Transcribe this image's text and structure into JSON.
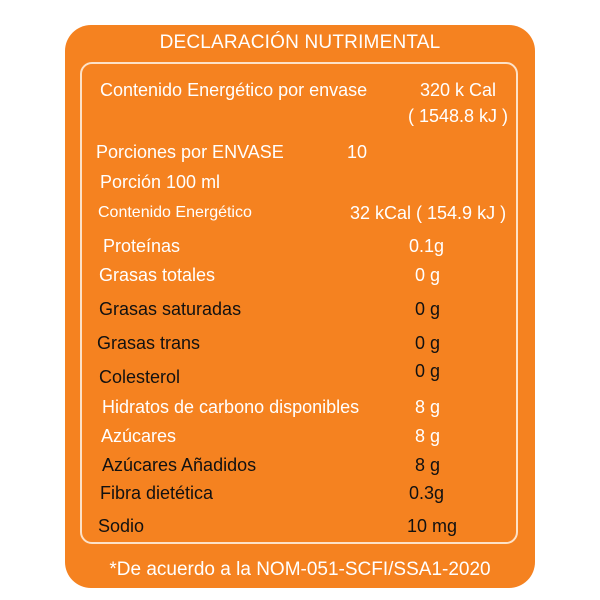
{
  "title": "DECLARACIÓN NUTRIMENTAL",
  "colors": {
    "panel": "#F58220",
    "text_light": "#FFFFFF",
    "text_dark": "#111111"
  },
  "energy_per_container": {
    "label": "Contenido Energético por envase",
    "kcal": "320 k Cal",
    "kj": "( 1548.8 kJ )"
  },
  "servings": {
    "label": "Porciones por ENVASE",
    "value": "10"
  },
  "serving_size": "Porción  100 ml",
  "energy_per_serving": {
    "label": "Contenido Energético",
    "value": "32 kCal ( 154.9 kJ )"
  },
  "nutrients": [
    {
      "label": "Proteínas",
      "value": "0.1g"
    },
    {
      "label": "Grasas totales",
      "value": "0 g"
    },
    {
      "label": "Grasas saturadas",
      "value": "0 g"
    },
    {
      "label": "Grasas trans",
      "value": "0 g"
    },
    {
      "label": "Colesterol",
      "value": "0 g"
    },
    {
      "label": "Hidratos de carbono disponibles",
      "value": "8 g"
    },
    {
      "label": "Azúcares",
      "value": "8 g"
    },
    {
      "label": "Azúcares Añadidos",
      "value": "8 g"
    },
    {
      "label": "Fibra dietética",
      "value": "0.3g"
    },
    {
      "label": "Sodio",
      "value": "10 mg"
    }
  ],
  "footnote": "*De acuerdo a la NOM-051-SCFI/SSA1-2020"
}
